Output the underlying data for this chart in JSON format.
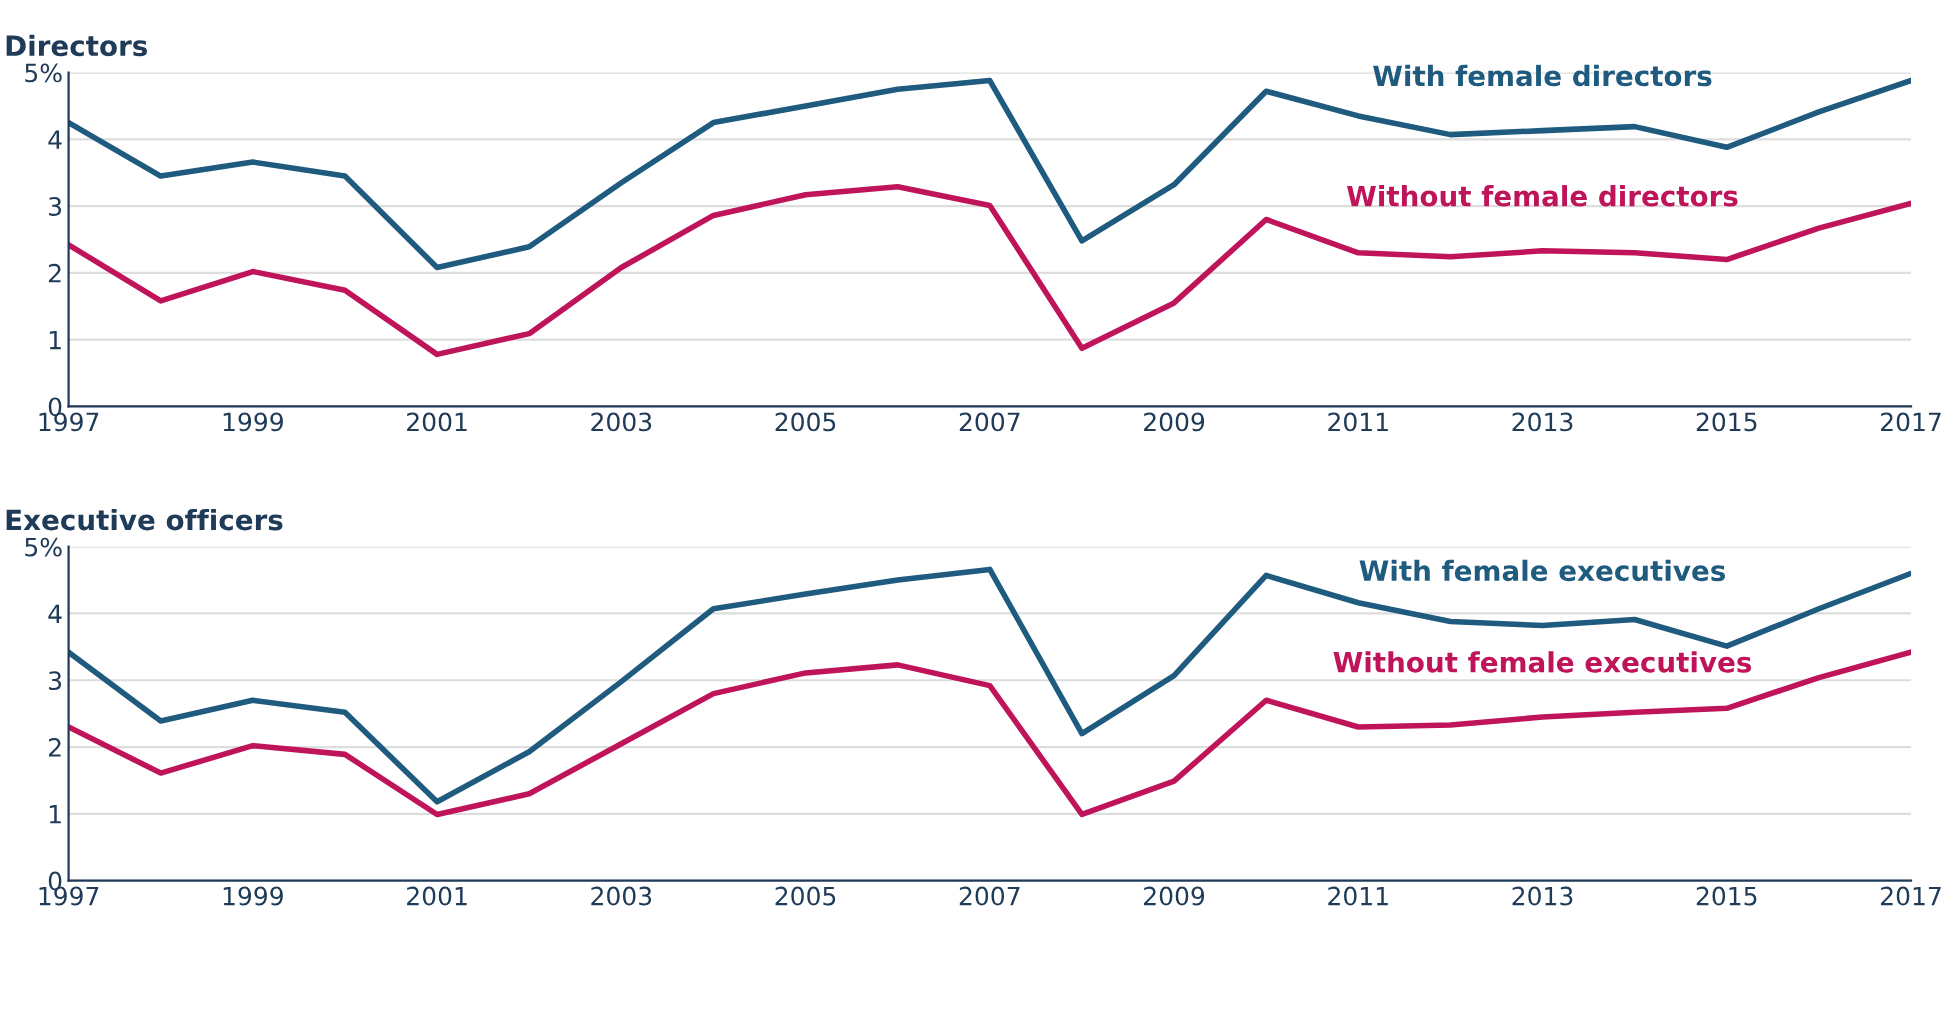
{
  "chart_data": [
    {
      "type": "line",
      "title": "Directors",
      "x": [
        1997,
        1998,
        1999,
        2000,
        2001,
        2002,
        2003,
        2004,
        2005,
        2006,
        2007,
        2008,
        2009,
        2010,
        2011,
        2012,
        2013,
        2014,
        2015,
        2016,
        2017
      ],
      "series": [
        {
          "name": "With female directors",
          "color": "#1f5b7e",
          "values": [
            4.25,
            3.45,
            3.66,
            3.45,
            2.08,
            2.39,
            3.35,
            4.25,
            4.5,
            4.75,
            4.88,
            2.48,
            3.32,
            4.72,
            4.35,
            4.07,
            4.13,
            4.19,
            3.88,
            4.41,
            4.88
          ]
        },
        {
          "name": "Without female directors",
          "color": "#c0145a",
          "values": [
            2.42,
            1.58,
            2.02,
            1.74,
            0.78,
            1.09,
            2.08,
            2.86,
            3.17,
            3.29,
            3.01,
            0.87,
            1.55,
            2.8,
            2.3,
            2.24,
            2.33,
            2.3,
            2.2,
            2.67,
            3.04
          ]
        }
      ],
      "xlim": [
        1997,
        2017
      ],
      "xticks": [
        1997,
        1999,
        2001,
        2003,
        2005,
        2007,
        2009,
        2011,
        2013,
        2015,
        2017
      ],
      "ylim": [
        0,
        5
      ],
      "yticks": [
        0,
        1,
        2,
        3,
        4,
        {
          "value": 5,
          "label": "5%"
        }
      ],
      "grid": "y",
      "legend": false,
      "marker": "none",
      "line_style": "solid"
    },
    {
      "type": "line",
      "title": "Executive officers",
      "x": [
        1997,
        1998,
        1999,
        2000,
        2001,
        2002,
        2003,
        2004,
        2005,
        2006,
        2007,
        2008,
        2009,
        2010,
        2011,
        2012,
        2013,
        2014,
        2015,
        2016,
        2017
      ],
      "series": [
        {
          "name": "With female executives",
          "color": "#1f5b7e",
          "values": [
            3.42,
            2.39,
            2.7,
            2.52,
            1.18,
            1.93,
            2.98,
            4.07,
            4.29,
            4.5,
            4.66,
            2.2,
            3.07,
            4.57,
            4.16,
            3.88,
            3.82,
            3.91,
            3.51,
            4.07,
            4.6
          ]
        },
        {
          "name": "Without female executives",
          "color": "#c0145a",
          "values": [
            2.3,
            1.61,
            2.02,
            1.89,
            0.99,
            1.3,
            2.05,
            2.8,
            3.11,
            3.23,
            2.92,
            0.99,
            1.49,
            2.7,
            2.3,
            2.33,
            2.45,
            2.52,
            2.58,
            3.04,
            3.42
          ]
        }
      ],
      "xlim": [
        1997,
        2017
      ],
      "xticks": [
        1997,
        1999,
        2001,
        2003,
        2005,
        2007,
        2009,
        2011,
        2013,
        2015,
        2017
      ],
      "ylim": [
        0,
        5
      ],
      "yticks": [
        0,
        1,
        2,
        3,
        4,
        {
          "value": 5,
          "label": "5%"
        }
      ],
      "grid": "y",
      "legend": false,
      "marker": "none",
      "line_style": "solid"
    }
  ]
}
